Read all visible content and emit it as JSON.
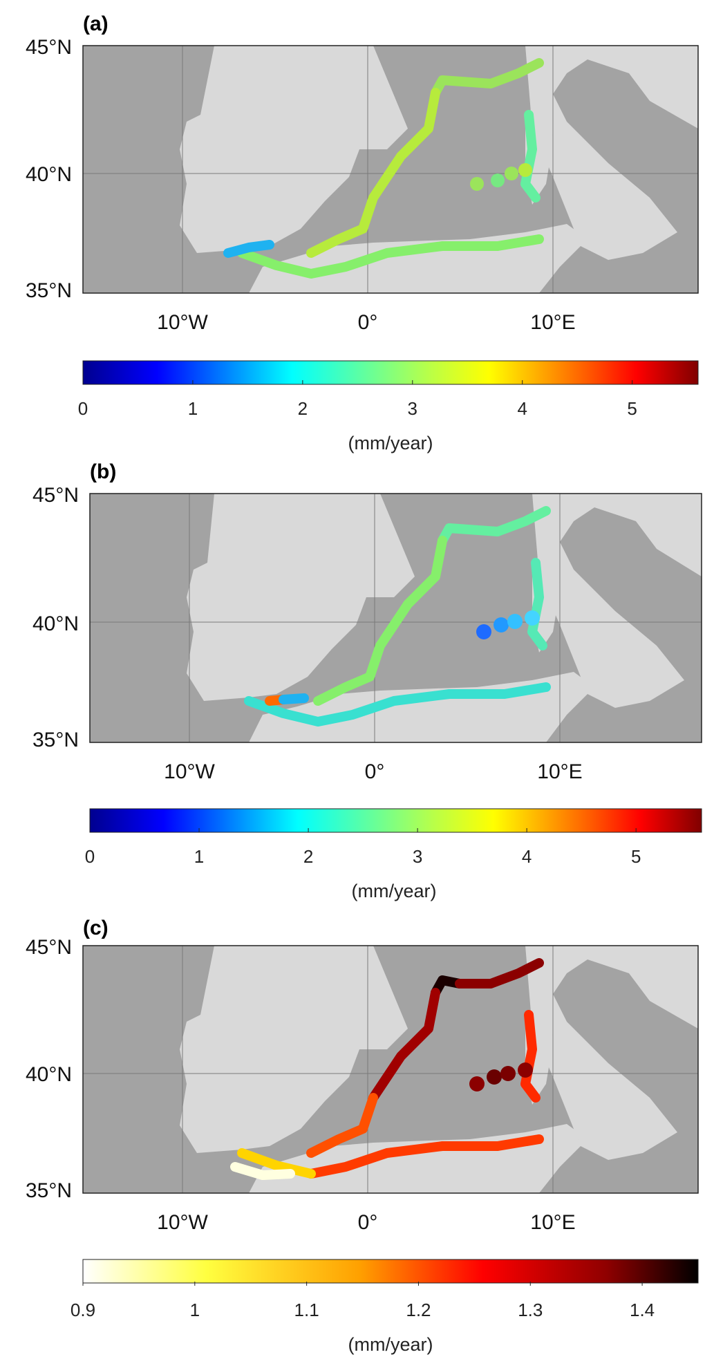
{
  "panels": [
    {
      "id": "a",
      "label": "(a)",
      "lat_labels": [
        "45°N",
        "40°N",
        "35°N"
      ],
      "lon_labels": [
        "10°W",
        "0°",
        "10°E"
      ],
      "colorbar": {
        "scale": "jet",
        "min": 0,
        "max": 5.6,
        "ticks": [
          "0",
          "1",
          "2",
          "3",
          "4",
          "5"
        ],
        "unit": "(mm/year)"
      }
    },
    {
      "id": "b",
      "label": "(b)",
      "lat_labels": [
        "45°N",
        "40°N",
        "35°N"
      ],
      "lon_labels": [
        "10°W",
        "0°",
        "10°E"
      ],
      "colorbar": {
        "scale": "jet",
        "min": 0,
        "max": 5.6,
        "ticks": [
          "0",
          "1",
          "2",
          "3",
          "4",
          "5"
        ],
        "unit": "(mm/year)"
      }
    },
    {
      "id": "c",
      "label": "(c)",
      "lat_labels": [
        "45°N",
        "40°N",
        "35°N"
      ],
      "lon_labels": [
        "10°W",
        "0°",
        "10°E"
      ],
      "colorbar": {
        "scale": "hot-reversed",
        "min": 0.9,
        "max": 1.45,
        "ticks": [
          "0.9",
          "1",
          "1.1",
          "1.2",
          "1.3",
          "1.4"
        ],
        "unit": "(mm/year)"
      }
    }
  ],
  "colors": {
    "sea": "#a3a3a3",
    "land": "#d9d9d9",
    "grid": "#7a7a7a"
  }
}
